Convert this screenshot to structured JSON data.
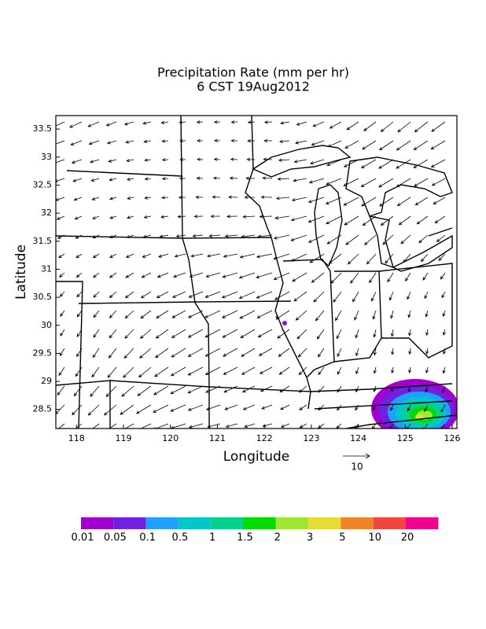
{
  "map": {
    "title": [
      "Precipitation Rate (mm per hr)",
      "6 CST 19Aug2012"
    ],
    "xlabel": "Longitude",
    "ylabel": "Latitude",
    "xlim": [
      117.56,
      126.1
    ],
    "ylim": [
      28.16,
      33.74
    ],
    "xticks": [
      118,
      119,
      120,
      121,
      122,
      123,
      124,
      125,
      126
    ],
    "yticks": [
      28.5,
      29,
      29.5,
      30,
      30.5,
      31,
      31.5,
      32,
      32.5,
      33,
      33.5
    ],
    "vector_scale": 10,
    "colorbar": {
      "labels": [
        0.01,
        0.05,
        0.1,
        0.5,
        1,
        1.5,
        2,
        3,
        5,
        10,
        20
      ],
      "colors": [
        "#a000d0",
        "#7020e0",
        "#1ea0ff",
        "#00c8c8",
        "#00d28c",
        "#00dc00",
        "#a0e632",
        "#e6dc32",
        "#f08228",
        "#f0463c",
        "#f0008c"
      ]
    }
  }
}
